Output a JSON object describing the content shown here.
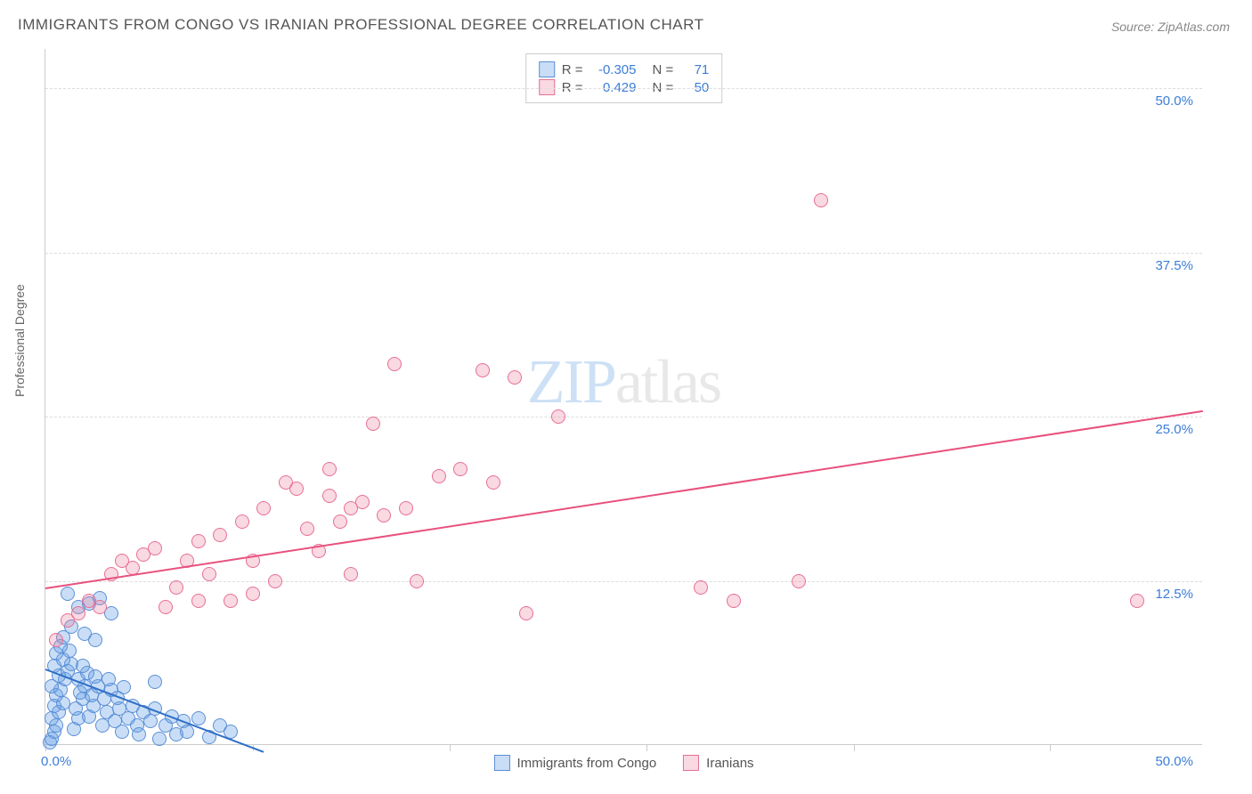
{
  "title": "IMMIGRANTS FROM CONGO VS IRANIAN PROFESSIONAL DEGREE CORRELATION CHART",
  "source": "Source: ZipAtlas.com",
  "ylabel": "Professional Degree",
  "watermark": {
    "zip": "ZIP",
    "atlas": "atlas"
  },
  "chart": {
    "type": "scatter",
    "xlim": [
      0,
      53
    ],
    "ylim": [
      0,
      53
    ],
    "ytick_step": 12.5,
    "ytick_labels": [
      "12.5%",
      "25.0%",
      "37.5%",
      "50.0%"
    ],
    "xtick_positions": [
      0,
      9.5,
      18.5,
      27.5,
      37,
      46
    ],
    "x_min_label": "0.0%",
    "x_max_label": "50.0%",
    "grid_color": "#dddddd",
    "axis_color": "#cccccc",
    "axis_label_color": "#3b7dd8",
    "background_color": "#ffffff"
  },
  "series": [
    {
      "name": "Immigrants from Congo",
      "color_fill": "rgba(100,160,230,0.35)",
      "color_stroke": "#5b8fd6",
      "trend_color": "#2f6fc7",
      "R": "-0.305",
      "N": "71",
      "trend": {
        "x1": 0,
        "y1": 5.8,
        "x2": 10,
        "y2": -0.5
      },
      "points": [
        [
          0.2,
          0.2
        ],
        [
          0.3,
          0.5
        ],
        [
          0.4,
          1.0
        ],
        [
          0.5,
          1.5
        ],
        [
          0.3,
          2.0
        ],
        [
          0.6,
          2.5
        ],
        [
          0.4,
          3.0
        ],
        [
          0.8,
          3.2
        ],
        [
          0.5,
          3.8
        ],
        [
          0.7,
          4.2
        ],
        [
          0.3,
          4.5
        ],
        [
          0.9,
          5.0
        ],
        [
          0.6,
          5.3
        ],
        [
          1.0,
          5.6
        ],
        [
          0.4,
          6.0
        ],
        [
          1.2,
          6.2
        ],
        [
          0.8,
          6.5
        ],
        [
          0.5,
          7.0
        ],
        [
          1.1,
          7.2
        ],
        [
          0.7,
          7.5
        ],
        [
          1.3,
          1.2
        ],
        [
          1.5,
          2.0
        ],
        [
          1.4,
          2.8
        ],
        [
          1.7,
          3.5
        ],
        [
          1.6,
          4.0
        ],
        [
          1.8,
          4.5
        ],
        [
          1.5,
          5.0
        ],
        [
          1.9,
          5.5
        ],
        [
          1.7,
          6.0
        ],
        [
          2.0,
          2.2
        ],
        [
          2.2,
          3.0
        ],
        [
          2.1,
          3.8
        ],
        [
          2.4,
          4.5
        ],
        [
          2.3,
          5.2
        ],
        [
          2.6,
          1.5
        ],
        [
          2.8,
          2.5
        ],
        [
          2.7,
          3.5
        ],
        [
          3.0,
          4.2
        ],
        [
          2.9,
          5.0
        ],
        [
          3.2,
          1.8
        ],
        [
          3.4,
          2.8
        ],
        [
          3.3,
          3.6
        ],
        [
          3.6,
          4.4
        ],
        [
          3.5,
          1.0
        ],
        [
          3.8,
          2.0
        ],
        [
          4.0,
          3.0
        ],
        [
          4.2,
          1.5
        ],
        [
          4.5,
          2.5
        ],
        [
          4.3,
          0.8
        ],
        [
          4.8,
          1.8
        ],
        [
          5.0,
          2.8
        ],
        [
          5.2,
          0.5
        ],
        [
          5.5,
          1.5
        ],
        [
          5.8,
          2.2
        ],
        [
          6.0,
          0.8
        ],
        [
          6.3,
          1.8
        ],
        [
          6.5,
          1.0
        ],
        [
          7.0,
          2.0
        ],
        [
          7.5,
          0.6
        ],
        [
          8.0,
          1.5
        ],
        [
          1.0,
          11.5
        ],
        [
          1.5,
          10.5
        ],
        [
          2.0,
          10.8
        ],
        [
          2.5,
          11.2
        ],
        [
          3.0,
          10.0
        ],
        [
          1.2,
          9.0
        ],
        [
          1.8,
          8.5
        ],
        [
          2.3,
          8.0
        ],
        [
          0.8,
          8.2
        ],
        [
          5.0,
          4.8
        ],
        [
          8.5,
          1.0
        ]
      ]
    },
    {
      "name": "Iranians",
      "color_fill": "rgba(235,130,160,0.30)",
      "color_stroke": "#e76f94",
      "trend_color": "#e8517e",
      "R": "0.429",
      "N": "50",
      "trend": {
        "x1": 0,
        "y1": 12.0,
        "x2": 53,
        "y2": 25.5
      },
      "points": [
        [
          0.5,
          8.0
        ],
        [
          1.0,
          9.5
        ],
        [
          1.5,
          10.0
        ],
        [
          2.0,
          11.0
        ],
        [
          2.5,
          10.5
        ],
        [
          3.0,
          13.0
        ],
        [
          3.5,
          14.0
        ],
        [
          4.0,
          13.5
        ],
        [
          4.5,
          14.5
        ],
        [
          5.0,
          15.0
        ],
        [
          5.5,
          10.5
        ],
        [
          6.0,
          12.0
        ],
        [
          6.5,
          14.0
        ],
        [
          7.0,
          15.5
        ],
        [
          7.5,
          13.0
        ],
        [
          8.0,
          16.0
        ],
        [
          8.5,
          11.0
        ],
        [
          9.0,
          17.0
        ],
        [
          9.5,
          14.0
        ],
        [
          10.0,
          18.0
        ],
        [
          10.5,
          12.5
        ],
        [
          11.0,
          20.0
        ],
        [
          12.0,
          16.5
        ],
        [
          13.0,
          21.0
        ],
        [
          14.0,
          18.0
        ],
        [
          15.0,
          24.5
        ],
        [
          13.5,
          17.0
        ],
        [
          14.5,
          18.5
        ],
        [
          15.5,
          17.5
        ],
        [
          16.5,
          18.0
        ],
        [
          17.0,
          12.5
        ],
        [
          18.0,
          20.5
        ],
        [
          20.0,
          28.5
        ],
        [
          21.5,
          28.0
        ],
        [
          19.0,
          21.0
        ],
        [
          22.0,
          10.0
        ],
        [
          23.5,
          25.0
        ],
        [
          16.0,
          29.0
        ],
        [
          20.5,
          20.0
        ],
        [
          12.5,
          14.8
        ],
        [
          30.0,
          12.0
        ],
        [
          31.5,
          11.0
        ],
        [
          34.5,
          12.5
        ],
        [
          35.5,
          41.5
        ],
        [
          50.0,
          11.0
        ],
        [
          11.5,
          19.5
        ],
        [
          13.0,
          19.0
        ],
        [
          14.0,
          13.0
        ],
        [
          9.5,
          11.5
        ],
        [
          7.0,
          11.0
        ]
      ]
    }
  ],
  "legend_bottom": [
    {
      "label": "Immigrants from Congo",
      "fill": "rgba(100,160,230,0.35)",
      "stroke": "#5b8fd6"
    },
    {
      "label": "Iranians",
      "fill": "rgba(235,130,160,0.30)",
      "stroke": "#e76f94"
    }
  ]
}
